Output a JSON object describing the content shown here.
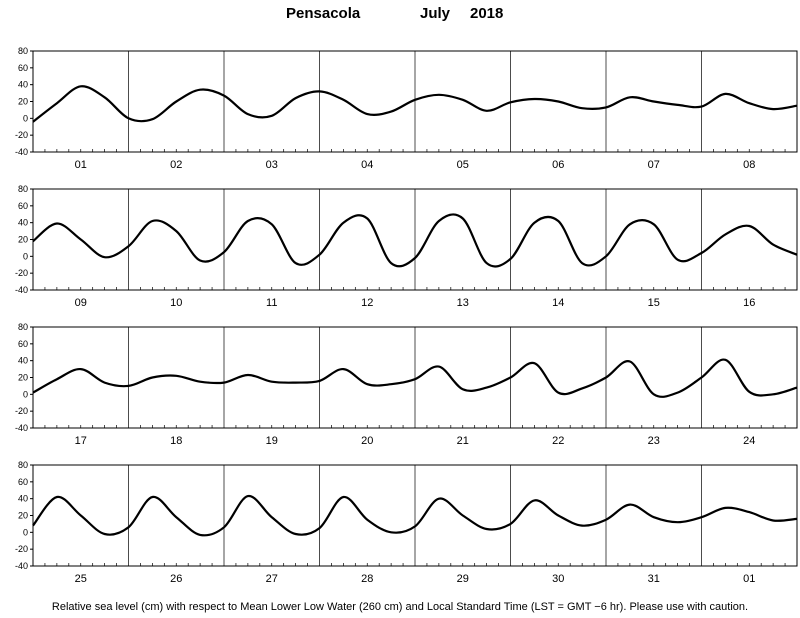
{
  "header": {
    "station": "Pensacola",
    "month": "July",
    "year": "2018"
  },
  "footnote": "Relative sea level (cm) with respect to Mean Lower Low Water (260 cm) and Local Standard Time (LST = GMT −6 hr). Please use with caution.",
  "chart_data": [
    {
      "type": "line",
      "panel": 1,
      "categories": [
        "01",
        "02",
        "03",
        "04",
        "05",
        "06",
        "07",
        "08"
      ],
      "x_unit": "day",
      "y_ticks": [
        80,
        60,
        40,
        20,
        0,
        -20,
        -40
      ],
      "ylim": [
        -40,
        80
      ],
      "grid": "vertical day boundaries",
      "series": [
        {
          "x": [
            0,
            0.25,
            0.5,
            0.75,
            1,
            1.25,
            1.5,
            1.75,
            2,
            2.25,
            2.5,
            2.75,
            3,
            3.25,
            3.5,
            3.75,
            4,
            4.25,
            4.5,
            4.75,
            5,
            5.25,
            5.5,
            5.75,
            6,
            6.25,
            6.5,
            6.75,
            7,
            7.25,
            7.5,
            7.75,
            8
          ],
          "y": [
            -4,
            18,
            38,
            25,
            0,
            -1,
            20,
            34,
            27,
            5,
            3,
            24,
            32,
            22,
            5,
            8,
            22,
            28,
            22,
            9,
            19,
            23,
            20,
            12,
            13,
            25,
            20,
            16,
            14,
            29,
            18,
            11,
            15
          ]
        }
      ]
    },
    {
      "type": "line",
      "panel": 2,
      "categories": [
        "09",
        "10",
        "11",
        "12",
        "13",
        "14",
        "15",
        "16"
      ],
      "x_unit": "day",
      "y_ticks": [
        80,
        60,
        40,
        20,
        0,
        -20,
        -40
      ],
      "ylim": [
        -40,
        80
      ],
      "grid": "vertical day boundaries",
      "series": [
        {
          "x": [
            0,
            0.25,
            0.5,
            0.75,
            1,
            1.25,
            1.5,
            1.75,
            2,
            2.25,
            2.5,
            2.75,
            3,
            3.25,
            3.5,
            3.75,
            4,
            4.25,
            4.5,
            4.75,
            5,
            5.25,
            5.5,
            5.75,
            6,
            6.25,
            6.5,
            6.75,
            7,
            7.25,
            7.5,
            7.75,
            8
          ],
          "y": [
            18,
            39,
            20,
            -1,
            12,
            42,
            30,
            -5,
            5,
            42,
            38,
            -8,
            2,
            40,
            45,
            -8,
            -2,
            42,
            45,
            -8,
            -3,
            40,
            42,
            -8,
            0,
            38,
            38,
            -4,
            4,
            26,
            36,
            14,
            2
          ]
        }
      ]
    },
    {
      "type": "line",
      "panel": 3,
      "categories": [
        "17",
        "18",
        "19",
        "20",
        "21",
        "22",
        "23",
        "24"
      ],
      "x_unit": "day",
      "y_ticks": [
        80,
        60,
        40,
        20,
        0,
        -20,
        -40
      ],
      "ylim": [
        -40,
        80
      ],
      "grid": "vertical day boundaries",
      "series": [
        {
          "x": [
            0,
            0.25,
            0.5,
            0.75,
            1,
            1.25,
            1.5,
            1.75,
            2,
            2.25,
            2.5,
            2.75,
            3,
            3.25,
            3.5,
            3.75,
            4,
            4.25,
            4.5,
            4.75,
            5,
            5.25,
            5.5,
            5.75,
            6,
            6.25,
            6.5,
            6.75,
            7,
            7.25,
            7.5,
            7.75,
            8
          ],
          "y": [
            2,
            18,
            30,
            14,
            10,
            20,
            22,
            15,
            14,
            23,
            15,
            14,
            16,
            30,
            12,
            12,
            18,
            33,
            6,
            8,
            20,
            37,
            2,
            7,
            20,
            39,
            0,
            2,
            20,
            41,
            3,
            0,
            8
          ]
        }
      ]
    },
    {
      "type": "line",
      "panel": 4,
      "categories": [
        "25",
        "26",
        "27",
        "28",
        "29",
        "30",
        "31",
        "01"
      ],
      "x_unit": "day",
      "y_ticks": [
        80,
        60,
        40,
        20,
        0,
        -20,
        -40
      ],
      "ylim": [
        -40,
        80
      ],
      "grid": "vertical day boundaries",
      "series": [
        {
          "x": [
            0,
            0.25,
            0.5,
            0.75,
            1,
            1.25,
            1.5,
            1.75,
            2,
            2.25,
            2.5,
            2.75,
            3,
            3.25,
            3.5,
            3.75,
            4,
            4.25,
            4.5,
            4.75,
            5,
            5.25,
            5.5,
            5.75,
            6,
            6.25,
            6.5,
            6.75,
            7,
            7.25,
            7.5,
            7.75,
            8
          ],
          "y": [
            8,
            42,
            20,
            -2,
            6,
            42,
            18,
            -3,
            6,
            43,
            18,
            -2,
            5,
            42,
            15,
            0,
            7,
            40,
            20,
            4,
            10,
            38,
            20,
            8,
            15,
            33,
            18,
            12,
            18,
            29,
            24,
            14,
            16
          ]
        }
      ]
    }
  ]
}
